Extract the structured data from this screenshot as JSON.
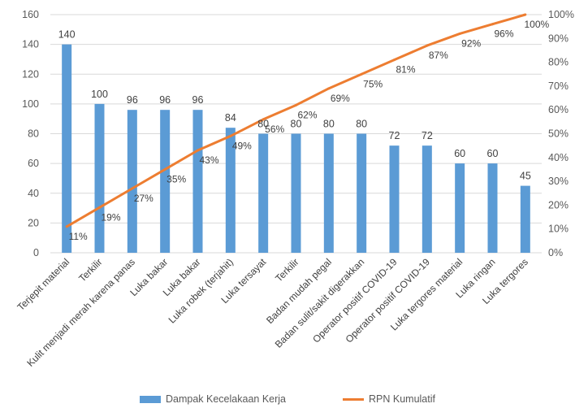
{
  "chart_data": {
    "type": "bar",
    "categories": [
      "Terjepit material",
      "Terkilir",
      "Kulit menjadi merah karena panas",
      "Luka bakar",
      "Luka bakar",
      "Luka robek (terjahit)",
      "Luka tersayat",
      "Terkilir",
      "Badan mudah pegal",
      "Badan sulit/sakit digerakkan",
      "Operator positif COVID-19",
      "Operator positif COVID-19",
      "Luka tergores material",
      "Luka ringan",
      "Luka tergores"
    ],
    "series": [
      {
        "name": "Dampak Kecelakaan Kerja",
        "type": "bar",
        "axis": "left",
        "color": "#5b9bd5",
        "values": [
          140,
          100,
          96,
          96,
          96,
          84,
          80,
          80,
          80,
          80,
          72,
          72,
          60,
          60,
          45
        ],
        "labels": [
          "140",
          "100",
          "96",
          "96",
          "96",
          "84",
          "80",
          "80",
          "80",
          "80",
          "72",
          "72",
          "60",
          "60",
          "45"
        ]
      },
      {
        "name": "RPN Kumulatif",
        "type": "line",
        "axis": "right",
        "color": "#ed7d31",
        "values": [
          11,
          19,
          27,
          35,
          43,
          49,
          56,
          62,
          69,
          75,
          81,
          87,
          92,
          96,
          100
        ],
        "labels": [
          "11%",
          "19%",
          "27%",
          "35%",
          "43%",
          "49%",
          "56%",
          "62%",
          "69%",
          "75%",
          "81%",
          "87%",
          "92%",
          "96%",
          "100%"
        ]
      }
    ],
    "y_left": {
      "min": 0,
      "max": 160,
      "ticks": [
        "0",
        "20",
        "40",
        "60",
        "80",
        "100",
        "120",
        "140",
        "160"
      ]
    },
    "y_right": {
      "min": 0,
      "max": 100,
      "ticks": [
        "0%",
        "10%",
        "20%",
        "30%",
        "40%",
        "50%",
        "60%",
        "70%",
        "80%",
        "90%",
        "100%"
      ]
    },
    "grid": true,
    "legend_position": "bottom"
  }
}
